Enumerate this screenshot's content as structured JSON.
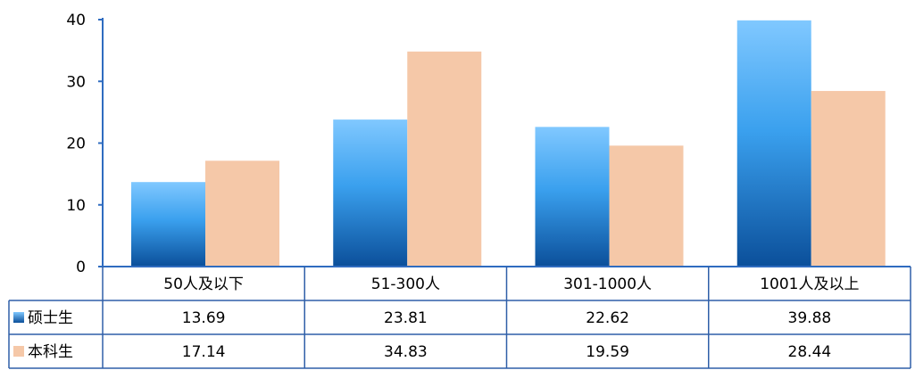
{
  "chart_data": {
    "type": "bar",
    "categories": [
      "50人及以下",
      "51-300人",
      "301-1000人",
      "1001人及以上"
    ],
    "series": [
      {
        "name": "硕士生",
        "values": [
          13.69,
          23.81,
          22.62,
          39.88
        ],
        "color": "#3a9ae0"
      },
      {
        "name": "本科生",
        "values": [
          17.14,
          34.83,
          19.59,
          28.44
        ],
        "color": "#f5c8a8"
      }
    ],
    "value_labels": [
      [
        "13.69",
        "23.81",
        "22.62",
        "39.88"
      ],
      [
        "17.14",
        "34.83",
        "19.59",
        "28.44"
      ]
    ],
    "ylim": [
      0,
      40
    ],
    "yticks": [
      "0",
      "10",
      "20",
      "30",
      "40"
    ],
    "grid": false,
    "legend": "data-table",
    "title": "",
    "xlabel": "",
    "ylabel": ""
  },
  "colors": {
    "axis": "#2f6cc0",
    "table_border": "#2f5fa8",
    "series1_top": "#80c8ff",
    "series1_mid": "#3aa0ee",
    "series1_bottom": "#0b4f9a",
    "series2_fill": "#f5c8a8"
  }
}
